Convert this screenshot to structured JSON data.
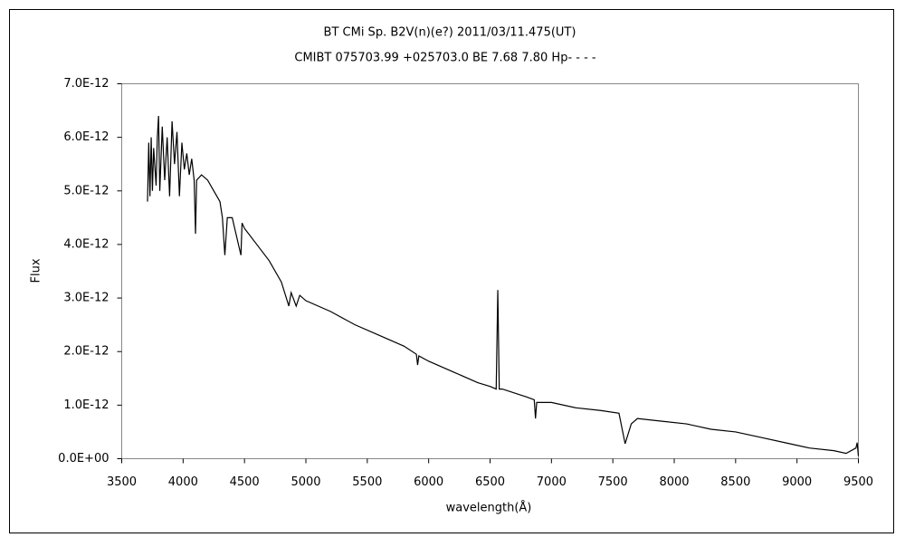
{
  "chart_data": {
    "type": "line",
    "title": "BT CMi    Sp. B2V(n)(e?)    2011/03/11.475(UT)",
    "subtitle": "CMIBT 075703.99 +025703.0 BE 7.68 7.80 Hp- - - -",
    "x_label": "wavelength(Å)",
    "y_label": "Flux",
    "xlim": [
      3500,
      9500
    ],
    "xticks": [
      3500,
      4000,
      4500,
      5000,
      5500,
      6000,
      6500,
      7000,
      7500,
      8000,
      8500,
      9000,
      9500
    ],
    "ylim": [
      0,
      7e-12
    ],
    "yticks": [
      {
        "value": 0,
        "label": "0.0E+00"
      },
      {
        "value": 1e-12,
        "label": "1.0E-12"
      },
      {
        "value": 2e-12,
        "label": "2.0E-12"
      },
      {
        "value": 3e-12,
        "label": "3.0E-12"
      },
      {
        "value": 4e-12,
        "label": "4.0E-12"
      },
      {
        "value": 5e-12,
        "label": "5.0E-12"
      },
      {
        "value": 6e-12,
        "label": "6.0E-12"
      },
      {
        "value": 7e-12,
        "label": "7.0E-12"
      }
    ],
    "grid": false,
    "series": [
      {
        "color": "#000000",
        "x": [
          3710,
          3720,
          3730,
          3740,
          3750,
          3760,
          3780,
          3790,
          3800,
          3810,
          3830,
          3850,
          3870,
          3890,
          3910,
          3930,
          3950,
          3970,
          3990,
          4010,
          4030,
          4050,
          4070,
          4090,
          4101,
          4110,
          4150,
          4200,
          4250,
          4300,
          4320,
          4340,
          4360,
          4400,
          4471,
          4480,
          4500,
          4600,
          4700,
          4800,
          4861,
          4880,
          4921,
          4950,
          5000,
          5200,
          5400,
          5600,
          5800,
          5900,
          5910,
          5920,
          6000,
          6200,
          6400,
          6500,
          6550,
          6563,
          6575,
          6600,
          6800,
          6860,
          6870,
          6880,
          7000,
          7200,
          7400,
          7550,
          7600,
          7650,
          7700,
          7900,
          8100,
          8300,
          8500,
          8700,
          8900,
          9100,
          9300,
          9400,
          9480,
          9490,
          9500
        ],
        "values": [
          4.8e-12,
          5.9e-12,
          4.9e-12,
          6e-12,
          5e-12,
          5.8e-12,
          5.1e-12,
          6e-12,
          6.4e-12,
          5e-12,
          6.2e-12,
          5.2e-12,
          6e-12,
          4.9e-12,
          6.3e-12,
          5.5e-12,
          6.1e-12,
          4.9e-12,
          5.9e-12,
          5.4e-12,
          5.7e-12,
          5.3e-12,
          5.6e-12,
          5.2e-12,
          4.2e-12,
          5.2e-12,
          5.3e-12,
          5.2e-12,
          5e-12,
          4.8e-12,
          4.5e-12,
          3.8e-12,
          4.5e-12,
          4.5e-12,
          3.8e-12,
          4.4e-12,
          4.3e-12,
          4e-12,
          3.7e-12,
          3.3e-12,
          2.85e-12,
          3.1e-12,
          2.85e-12,
          3.05e-12,
          2.95e-12,
          2.75e-12,
          2.5e-12,
          2.3e-12,
          2.1e-12,
          1.95e-12,
          1.75e-12,
          1.92e-12,
          1.82e-12,
          1.62e-12,
          1.42e-12,
          1.35e-12,
          1.3e-12,
          3.15e-12,
          1.3e-12,
          1.3e-12,
          1.15e-12,
          1.1e-12,
          7.5e-13,
          1.05e-12,
          1.05e-12,
          9.5e-13,
          9e-13,
          8.5e-13,
          2.8e-13,
          6.5e-13,
          7.5e-13,
          7e-13,
          6.5e-13,
          5.5e-13,
          5e-13,
          4e-13,
          3e-13,
          2e-13,
          1.5e-13,
          1e-13,
          2e-13,
          3e-13,
          5e-14
        ]
      }
    ]
  }
}
